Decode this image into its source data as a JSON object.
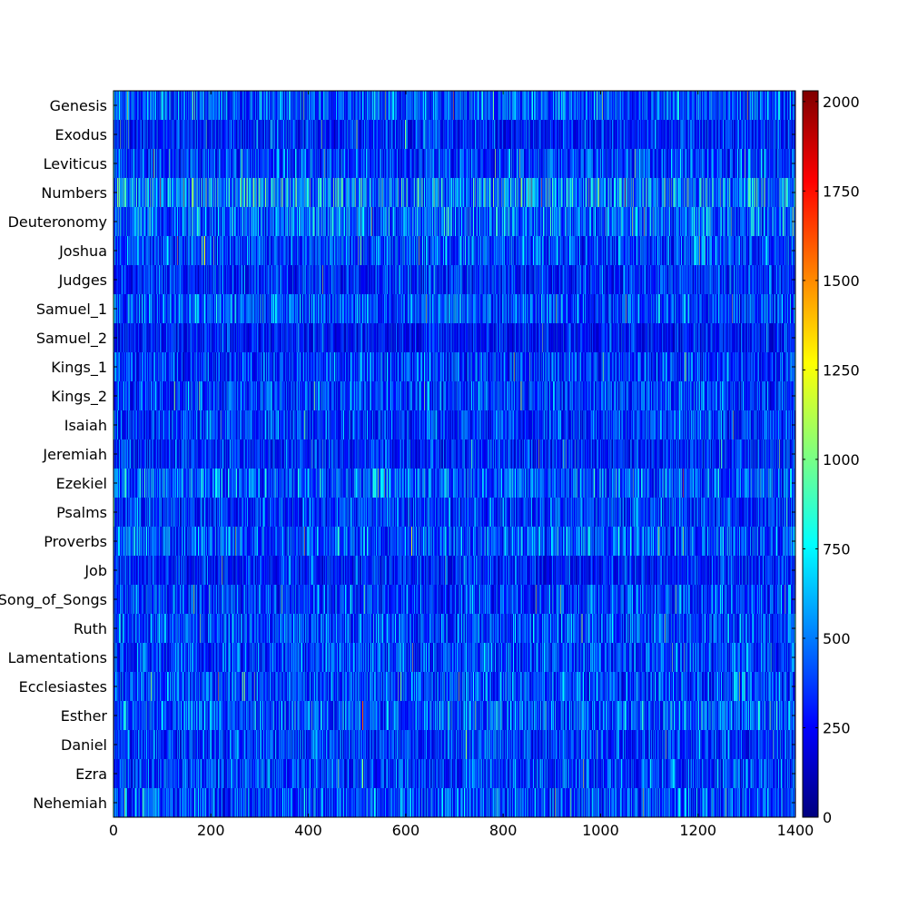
{
  "chart_data": {
    "type": "heatmap",
    "title": "",
    "xlabel": "",
    "ylabel": "",
    "rows": [
      "Genesis",
      "Exodus",
      "Leviticus",
      "Numbers",
      "Deuteronomy",
      "Joshua",
      "Judges",
      "Samuel_1",
      "Samuel_2",
      "Kings_1",
      "Kings_2",
      "Isaiah",
      "Jeremiah",
      "Ezekiel",
      "Psalms",
      "Proverbs",
      "Job",
      "Song_of_Songs",
      "Ruth",
      "Lamentations",
      "Ecclesiastes",
      "Esther",
      "Daniel",
      "Ezra",
      "Nehemiah"
    ],
    "xlim": [
      0,
      1400
    ],
    "x_ticks": [
      0,
      200,
      400,
      600,
      800,
      1000,
      1200,
      1400
    ],
    "x_tick_labels": [
      "0",
      "200",
      "400",
      "600",
      "800",
      "1000",
      "1200",
      "1400"
    ],
    "colorbar": {
      "vmin": 0,
      "vmax": 2030,
      "ticks": [
        0,
        250,
        500,
        750,
        1000,
        1250,
        1500,
        1750,
        2000
      ],
      "tick_labels": [
        "0",
        "250",
        "500",
        "750",
        "1000",
        "1250",
        "1500",
        "1750",
        "2000"
      ],
      "colormap": "jet",
      "stops": [
        "#00007f",
        "#0000ff",
        "#007fff",
        "#00ffff",
        "#7fff7f",
        "#ffff00",
        "#ff7f00",
        "#ff0000",
        "#7f0000"
      ]
    },
    "row_mean_values": [
      420,
      330,
      390,
      560,
      470,
      400,
      340,
      420,
      290,
      380,
      380,
      370,
      330,
      450,
      360,
      430,
      320,
      380,
      400,
      390,
      400,
      440,
      370,
      380,
      420
    ],
    "columns_per_row": 1390,
    "grid": false
  }
}
